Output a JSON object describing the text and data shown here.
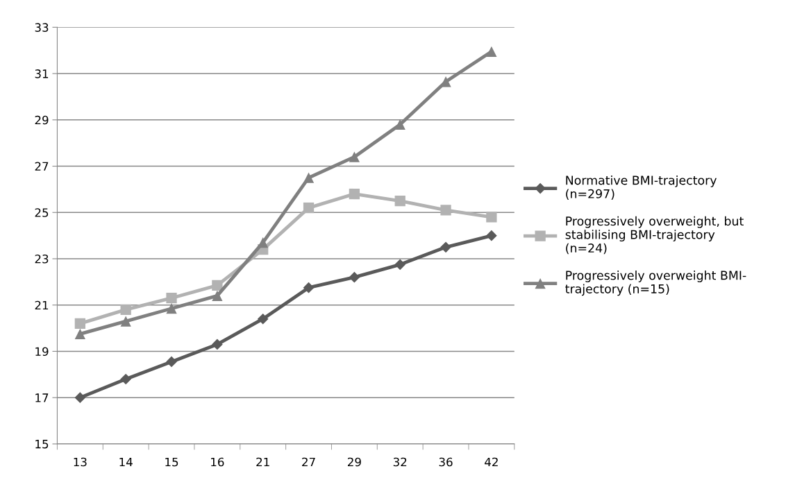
{
  "chart_data": {
    "type": "line",
    "categories": [
      "13",
      "14",
      "15",
      "16",
      "21",
      "27",
      "29",
      "32",
      "36",
      "42"
    ],
    "series": [
      {
        "name": "Normative BMI-trajectory\n(n=297)",
        "color": "#5a5a5a",
        "marker": "diamond",
        "values": [
          17.0,
          17.8,
          18.55,
          19.3,
          20.4,
          21.75,
          22.2,
          22.75,
          23.5,
          24.0
        ]
      },
      {
        "name": "Progressively overweight, but\nstabilising BMI-trajectory\n(n=24)",
        "color": "#b2b2b2",
        "marker": "square",
        "values": [
          20.2,
          20.8,
          21.3,
          21.85,
          23.4,
          25.2,
          25.8,
          25.5,
          25.1,
          24.8
        ]
      },
      {
        "name": "Progressively overweight BMI-\ntrajectory (n=15)",
        "color": "#808080",
        "marker": "triangle",
        "values": [
          19.75,
          20.3,
          20.85,
          21.4,
          23.7,
          26.5,
          27.4,
          28.8,
          30.65,
          31.95
        ]
      }
    ],
    "ylim": [
      15,
      33
    ],
    "yticks": [
      15,
      17,
      19,
      21,
      23,
      25,
      27,
      29,
      31,
      33
    ],
    "grid": "y",
    "legend": "right",
    "line_style": "solid"
  }
}
